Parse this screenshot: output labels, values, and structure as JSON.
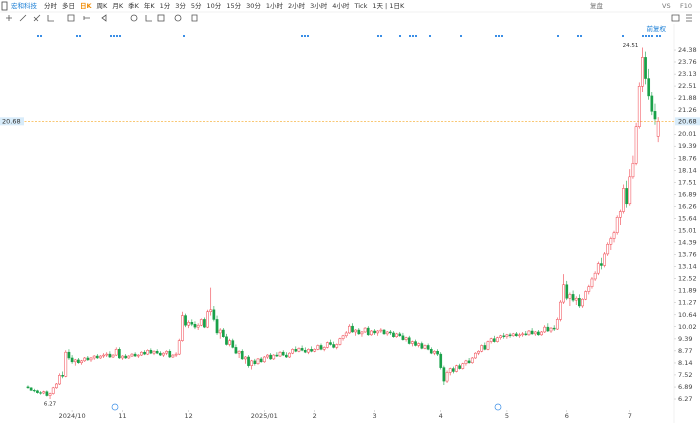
{
  "toolbar": {
    "stock": "宏和科技",
    "periods": [
      "分时",
      "多日",
      "日K",
      "周K",
      "月K",
      "季K",
      "年K",
      "1分",
      "3分",
      "5分",
      "10分",
      "15分",
      "30分",
      "1小时",
      "2小时",
      "3小时",
      "4小时",
      "Tick",
      "1天 | 1日K"
    ],
    "active_period": 2,
    "right": [
      "复盘",
      "VS",
      "F10"
    ]
  },
  "chart_data": {
    "type": "candlestick",
    "adjust": "前复权",
    "up_color": "#f0404a",
    "down_color": "#18a048",
    "ylim": [
      5.7,
      25.42
    ],
    "xlim": [
      -0.63,
      204.4
    ],
    "yticks": [
      24.38,
      23.76,
      23.13,
      22.51,
      21.88,
      21.26,
      20.01,
      19.39,
      18.76,
      18.14,
      17.51,
      16.89,
      16.26,
      15.64,
      15.01,
      14.39,
      13.76,
      13.14,
      12.52,
      11.89,
      11.27,
      10.64,
      10.02,
      9.39,
      8.77,
      8.14,
      7.52,
      6.89,
      6.27
    ],
    "xticks": [
      {
        "value": 14,
        "label": "2024/10"
      },
      {
        "value": 30,
        "label": "11"
      },
      {
        "value": 51,
        "label": "12"
      },
      {
        "value": 75,
        "label": "2025/01"
      },
      {
        "value": 91,
        "label": "2"
      },
      {
        "value": 110,
        "label": "3"
      },
      {
        "value": 131,
        "label": "4"
      },
      {
        "value": 152,
        "label": "5"
      },
      {
        "value": 171,
        "label": "6"
      },
      {
        "value": 191,
        "label": "7"
      }
    ],
    "last_price": 20.68,
    "max_label": {
      "value": 24.51,
      "index": 195
    },
    "min_label": {
      "value": 6.27,
      "index": 7
    },
    "candles": [
      [
        6.9,
        6.98,
        6.8,
        6.85
      ],
      [
        6.85,
        6.88,
        6.7,
        6.72
      ],
      [
        6.72,
        6.8,
        6.62,
        6.7
      ],
      [
        6.7,
        6.75,
        6.55,
        6.6
      ],
      [
        6.6,
        6.68,
        6.5,
        6.58
      ],
      [
        6.58,
        6.7,
        6.52,
        6.65
      ],
      [
        6.65,
        6.72,
        6.4,
        6.45
      ],
      [
        6.45,
        6.6,
        6.27,
        6.55
      ],
      [
        6.55,
        6.9,
        6.5,
        6.85
      ],
      [
        6.85,
        7.1,
        6.8,
        7.05
      ],
      [
        7.05,
        7.6,
        7.0,
        7.5
      ],
      [
        7.5,
        7.7,
        7.35,
        7.45
      ],
      [
        7.45,
        8.8,
        7.4,
        8.7
      ],
      [
        8.7,
        8.85,
        8.3,
        8.4
      ],
      [
        8.4,
        8.55,
        8.1,
        8.2
      ],
      [
        8.2,
        8.35,
        8.0,
        8.3
      ],
      [
        8.3,
        8.4,
        8.1,
        8.15
      ],
      [
        8.15,
        8.3,
        8.05,
        8.25
      ],
      [
        8.25,
        8.45,
        8.2,
        8.4
      ],
      [
        8.4,
        8.5,
        8.25,
        8.3
      ],
      [
        8.3,
        8.45,
        8.2,
        8.4
      ],
      [
        8.4,
        8.55,
        8.3,
        8.5
      ],
      [
        8.5,
        8.6,
        8.35,
        8.4
      ],
      [
        8.4,
        8.55,
        8.35,
        8.5
      ],
      [
        8.5,
        8.65,
        8.4,
        8.55
      ],
      [
        8.55,
        8.7,
        8.45,
        8.6
      ],
      [
        8.6,
        8.75,
        8.4,
        8.45
      ],
      [
        8.45,
        8.6,
        8.4,
        8.55
      ],
      [
        8.55,
        8.95,
        8.5,
        8.85
      ],
      [
        8.85,
        8.95,
        8.35,
        8.4
      ],
      [
        8.4,
        8.55,
        8.3,
        8.5
      ],
      [
        8.5,
        8.6,
        8.35,
        8.4
      ],
      [
        8.4,
        8.55,
        8.35,
        8.5
      ],
      [
        8.5,
        8.65,
        8.45,
        8.6
      ],
      [
        8.6,
        8.7,
        8.45,
        8.5
      ],
      [
        8.5,
        8.6,
        8.4,
        8.55
      ],
      [
        8.55,
        8.75,
        8.5,
        8.7
      ],
      [
        8.7,
        8.8,
        8.55,
        8.6
      ],
      [
        8.6,
        8.85,
        8.55,
        8.8
      ],
      [
        8.8,
        8.9,
        8.6,
        8.65
      ],
      [
        8.65,
        8.8,
        8.55,
        8.75
      ],
      [
        8.75,
        8.85,
        8.6,
        8.65
      ],
      [
        8.65,
        8.75,
        8.5,
        8.55
      ],
      [
        8.55,
        8.7,
        8.45,
        8.65
      ],
      [
        8.65,
        8.8,
        8.55,
        8.75
      ],
      [
        8.75,
        8.85,
        8.4,
        8.45
      ],
      [
        8.45,
        8.6,
        8.4,
        8.55
      ],
      [
        8.55,
        8.7,
        8.45,
        8.6
      ],
      [
        8.6,
        9.4,
        8.55,
        9.3
      ],
      [
        9.3,
        10.8,
        9.25,
        10.6
      ],
      [
        10.6,
        10.7,
        10.0,
        10.1
      ],
      [
        10.1,
        10.35,
        9.95,
        10.25
      ],
      [
        10.25,
        10.4,
        10.05,
        10.15
      ],
      [
        10.15,
        10.3,
        9.9,
        10.0
      ],
      [
        10.0,
        10.2,
        9.85,
        10.1
      ],
      [
        10.1,
        10.45,
        10.05,
        10.4
      ],
      [
        10.4,
        10.5,
        9.95,
        10.0
      ],
      [
        10.0,
        10.9,
        9.95,
        10.8
      ],
      [
        10.8,
        12.05,
        10.6,
        10.9
      ],
      [
        10.9,
        11.1,
        10.3,
        10.4
      ],
      [
        10.4,
        10.6,
        9.6,
        9.7
      ],
      [
        9.7,
        9.95,
        9.4,
        9.85
      ],
      [
        9.85,
        9.95,
        9.45,
        9.5
      ],
      [
        9.5,
        9.65,
        9.05,
        9.1
      ],
      [
        9.1,
        9.4,
        9.0,
        9.3
      ],
      [
        9.3,
        9.4,
        8.9,
        8.95
      ],
      [
        8.95,
        9.1,
        8.6,
        8.65
      ],
      [
        8.65,
        8.8,
        8.4,
        8.75
      ],
      [
        8.75,
        8.85,
        8.3,
        8.35
      ],
      [
        8.35,
        8.5,
        8.1,
        8.45
      ],
      [
        8.45,
        8.55,
        7.9,
        8.0
      ],
      [
        8.0,
        8.3,
        7.8,
        8.25
      ],
      [
        8.25,
        8.35,
        8.0,
        8.1
      ],
      [
        8.1,
        8.4,
        8.05,
        8.35
      ],
      [
        8.35,
        8.45,
        8.15,
        8.2
      ],
      [
        8.2,
        8.5,
        8.15,
        8.45
      ],
      [
        8.45,
        8.6,
        8.35,
        8.55
      ],
      [
        8.55,
        8.65,
        8.3,
        8.35
      ],
      [
        8.35,
        8.6,
        8.3,
        8.55
      ],
      [
        8.55,
        8.7,
        8.45,
        8.5
      ],
      [
        8.5,
        8.75,
        8.45,
        8.7
      ],
      [
        8.7,
        8.8,
        8.5,
        8.55
      ],
      [
        8.55,
        8.7,
        8.4,
        8.45
      ],
      [
        8.45,
        8.7,
        8.4,
        8.65
      ],
      [
        8.65,
        8.9,
        8.6,
        8.85
      ],
      [
        8.85,
        9.0,
        8.7,
        8.75
      ],
      [
        8.75,
        8.95,
        8.7,
        8.9
      ],
      [
        8.9,
        9.05,
        8.75,
        8.8
      ],
      [
        8.8,
        8.95,
        8.65,
        8.7
      ],
      [
        8.7,
        8.9,
        8.6,
        8.85
      ],
      [
        8.85,
        9.0,
        8.7,
        8.75
      ],
      [
        8.75,
        8.9,
        8.7,
        8.85
      ],
      [
        8.85,
        9.1,
        8.8,
        9.05
      ],
      [
        9.05,
        9.15,
        8.8,
        8.85
      ],
      [
        8.85,
        9.0,
        8.75,
        8.95
      ],
      [
        8.95,
        9.25,
        8.9,
        9.2
      ],
      [
        9.2,
        9.35,
        9.05,
        9.1
      ],
      [
        9.1,
        9.25,
        8.9,
        8.95
      ],
      [
        8.95,
        9.15,
        8.85,
        9.1
      ],
      [
        9.1,
        9.45,
        9.05,
        9.4
      ],
      [
        9.4,
        9.6,
        9.3,
        9.55
      ],
      [
        9.55,
        9.8,
        9.45,
        9.7
      ],
      [
        9.7,
        10.15,
        9.65,
        10.05
      ],
      [
        10.05,
        10.2,
        9.7,
        9.75
      ],
      [
        9.75,
        9.9,
        9.55,
        9.85
      ],
      [
        9.85,
        9.95,
        9.6,
        9.65
      ],
      [
        9.65,
        9.8,
        9.5,
        9.75
      ],
      [
        9.75,
        10.0,
        9.7,
        9.95
      ],
      [
        9.95,
        10.05,
        9.55,
        9.6
      ],
      [
        9.6,
        9.85,
        9.55,
        9.8
      ],
      [
        9.8,
        9.9,
        9.6,
        9.7
      ],
      [
        9.7,
        9.85,
        9.55,
        9.8
      ],
      [
        9.8,
        9.95,
        9.7,
        9.85
      ],
      [
        9.85,
        9.9,
        9.6,
        9.65
      ],
      [
        9.65,
        9.8,
        9.55,
        9.75
      ],
      [
        9.75,
        9.85,
        9.6,
        9.7
      ],
      [
        9.7,
        9.8,
        9.45,
        9.5
      ],
      [
        9.5,
        9.7,
        9.45,
        9.65
      ],
      [
        9.65,
        9.75,
        9.5,
        9.55
      ],
      [
        9.55,
        9.7,
        9.3,
        9.35
      ],
      [
        9.35,
        9.5,
        9.25,
        9.45
      ],
      [
        9.45,
        9.55,
        9.1,
        9.15
      ],
      [
        9.15,
        9.3,
        9.0,
        9.25
      ],
      [
        9.25,
        9.35,
        9.0,
        9.05
      ],
      [
        9.05,
        9.2,
        8.95,
        9.15
      ],
      [
        9.15,
        9.25,
        8.85,
        8.9
      ],
      [
        8.9,
        9.1,
        8.85,
        9.05
      ],
      [
        9.05,
        9.15,
        8.8,
        8.85
      ],
      [
        8.85,
        8.95,
        8.6,
        8.65
      ],
      [
        8.65,
        8.8,
        8.55,
        8.75
      ],
      [
        8.75,
        8.85,
        8.5,
        8.6
      ],
      [
        8.6,
        8.7,
        7.8,
        7.9
      ],
      [
        7.9,
        8.0,
        7.0,
        7.2
      ],
      [
        7.2,
        7.75,
        7.1,
        7.65
      ],
      [
        7.65,
        7.9,
        7.5,
        7.85
      ],
      [
        7.85,
        7.95,
        7.6,
        7.7
      ],
      [
        7.7,
        8.05,
        7.65,
        8.0
      ],
      [
        8.0,
        8.1,
        7.8,
        7.85
      ],
      [
        7.85,
        8.15,
        7.8,
        8.1
      ],
      [
        8.1,
        8.3,
        8.0,
        8.25
      ],
      [
        8.25,
        8.4,
        8.1,
        8.15
      ],
      [
        8.15,
        8.45,
        8.1,
        8.4
      ],
      [
        8.4,
        8.7,
        8.35,
        8.65
      ],
      [
        8.65,
        8.8,
        8.55,
        8.75
      ],
      [
        8.75,
        9.1,
        8.7,
        9.05
      ],
      [
        9.05,
        9.2,
        8.8,
        8.85
      ],
      [
        8.85,
        9.3,
        8.8,
        9.25
      ],
      [
        9.25,
        9.45,
        9.15,
        9.4
      ],
      [
        9.4,
        9.55,
        9.2,
        9.25
      ],
      [
        9.25,
        9.5,
        9.2,
        9.45
      ],
      [
        9.45,
        9.6,
        9.35,
        9.55
      ],
      [
        9.55,
        9.7,
        9.4,
        9.5
      ],
      [
        9.5,
        9.65,
        9.4,
        9.6
      ],
      [
        9.6,
        9.7,
        9.45,
        9.55
      ],
      [
        9.55,
        9.7,
        9.5,
        9.65
      ],
      [
        9.65,
        9.75,
        9.5,
        9.55
      ],
      [
        9.55,
        9.7,
        9.45,
        9.6
      ],
      [
        9.6,
        9.75,
        9.5,
        9.65
      ],
      [
        9.65,
        9.8,
        9.55,
        9.6
      ],
      [
        9.6,
        9.85,
        9.55,
        9.8
      ],
      [
        9.8,
        9.95,
        9.6,
        9.65
      ],
      [
        9.65,
        9.8,
        9.55,
        9.75
      ],
      [
        9.75,
        9.85,
        9.55,
        9.6
      ],
      [
        9.6,
        9.8,
        9.55,
        9.75
      ],
      [
        9.75,
        10.1,
        9.7,
        10.0
      ],
      [
        10.0,
        10.2,
        9.75,
        9.8
      ],
      [
        9.8,
        10.0,
        9.7,
        9.95
      ],
      [
        9.95,
        10.1,
        9.8,
        9.9
      ],
      [
        9.9,
        10.5,
        9.85,
        10.4
      ],
      [
        10.4,
        11.4,
        10.3,
        11.3
      ],
      [
        11.3,
        12.75,
        11.2,
        12.2
      ],
      [
        12.2,
        12.4,
        11.4,
        11.5
      ],
      [
        11.5,
        11.8,
        11.1,
        11.7
      ],
      [
        11.7,
        11.9,
        11.3,
        11.4
      ],
      [
        11.4,
        11.6,
        11.15,
        11.5
      ],
      [
        11.5,
        11.7,
        11.0,
        11.1
      ],
      [
        11.1,
        11.5,
        11.0,
        11.45
      ],
      [
        11.45,
        11.9,
        11.4,
        11.85
      ],
      [
        11.85,
        12.2,
        11.7,
        12.1
      ],
      [
        12.1,
        12.6,
        12.0,
        12.5
      ],
      [
        12.5,
        12.9,
        12.4,
        12.8
      ],
      [
        12.8,
        13.4,
        12.7,
        13.3
      ],
      [
        13.3,
        13.6,
        13.0,
        13.2
      ],
      [
        13.2,
        13.9,
        13.1,
        13.8
      ],
      [
        13.8,
        14.4,
        13.7,
        14.3
      ],
      [
        14.3,
        14.7,
        14.0,
        14.6
      ],
      [
        14.6,
        15.0,
        14.4,
        14.9
      ],
      [
        14.9,
        15.8,
        14.8,
        15.7
      ],
      [
        15.7,
        16.1,
        15.3,
        16.0
      ],
      [
        16.0,
        17.4,
        15.9,
        17.2
      ],
      [
        17.2,
        17.6,
        16.2,
        16.4
      ],
      [
        16.4,
        18.2,
        16.3,
        17.8
      ],
      [
        17.8,
        18.9,
        17.7,
        18.5
      ],
      [
        18.5,
        20.6,
        18.4,
        20.4
      ],
      [
        20.4,
        22.7,
        20.3,
        22.5
      ],
      [
        22.5,
        24.51,
        22.2,
        24.0
      ],
      [
        24.0,
        24.3,
        22.6,
        22.9
      ],
      [
        22.9,
        23.4,
        21.8,
        22.0
      ],
      [
        22.0,
        22.2,
        21.0,
        21.2
      ],
      [
        21.2,
        21.6,
        20.5,
        20.8
      ],
      [
        19.9,
        20.9,
        19.6,
        20.68
      ]
    ]
  }
}
